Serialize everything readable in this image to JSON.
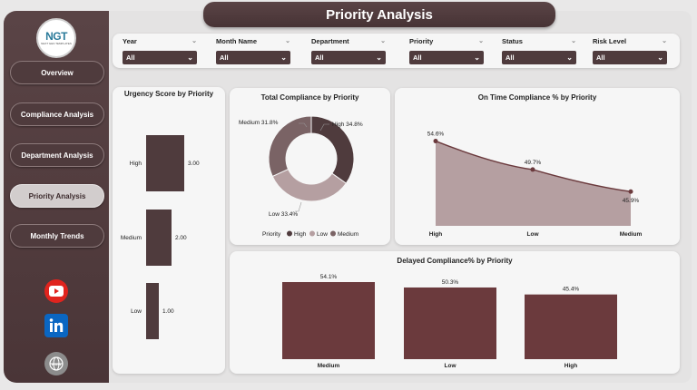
{
  "header": {
    "title": "Priority Analysis"
  },
  "logo": {
    "main": "NGT",
    "sub": "NEXT GEN TEMPLATES"
  },
  "sidebar": {
    "items": [
      {
        "label": "Overview",
        "active": false
      },
      {
        "label": "Compliance Analysis",
        "active": false
      },
      {
        "label": "Department Analysis",
        "active": false
      },
      {
        "label": "Priority Analysis",
        "active": true
      },
      {
        "label": "Monthly Trends",
        "active": false
      }
    ],
    "social": [
      "youtube-icon",
      "linkedin-icon",
      "website-icon"
    ]
  },
  "filters": [
    {
      "label": "Year",
      "value": "All"
    },
    {
      "label": "Month Name",
      "value": "All"
    },
    {
      "label": "Department",
      "value": "All"
    },
    {
      "label": "Priority",
      "value": "All"
    },
    {
      "label": "Status",
      "value": "All"
    },
    {
      "label": "Risk Level",
      "value": "All"
    }
  ],
  "colors": {
    "dark": "#4f3b3d",
    "brown": "#6b3a3d",
    "mauve": "#b59fa1",
    "sidebar": "#4a3537",
    "accent": "#8a4a4d"
  },
  "chart_data": [
    {
      "type": "bar",
      "title": "Urgency Score by Priority",
      "categories": [
        "High",
        "Medium",
        "Low"
      ],
      "values": [
        3.0,
        2.0,
        1.0
      ],
      "value_labels": [
        "3.00",
        "2.00",
        "1.00"
      ],
      "orientation": "vertical-bars-in-rows"
    },
    {
      "type": "pie",
      "title": "Total Compliance by Priority",
      "categories": [
        "High",
        "Low",
        "Medium"
      ],
      "values": [
        34.8,
        33.4,
        31.8
      ],
      "value_labels": [
        "High 34.8%",
        "Low 33.4%",
        "Medium 31.8%"
      ],
      "legend_title": "Priority",
      "legend": [
        "High",
        "Low",
        "Medium"
      ],
      "colors": [
        "#4f3b3d",
        "#b59fa1",
        "#7a6365"
      ]
    },
    {
      "type": "area",
      "title": "On Time Compliance % by Priority",
      "categories": [
        "High",
        "Low",
        "Medium"
      ],
      "values": [
        54.6,
        49.7,
        45.9
      ],
      "value_labels": [
        "54.6%",
        "49.7%",
        "45.9%"
      ]
    },
    {
      "type": "bar",
      "title": "Delayed Compliance% by Priority",
      "categories": [
        "Medium",
        "Low",
        "High"
      ],
      "values": [
        54.1,
        50.3,
        45.4
      ],
      "value_labels": [
        "54.1%",
        "50.3%",
        "45.4%"
      ]
    }
  ]
}
